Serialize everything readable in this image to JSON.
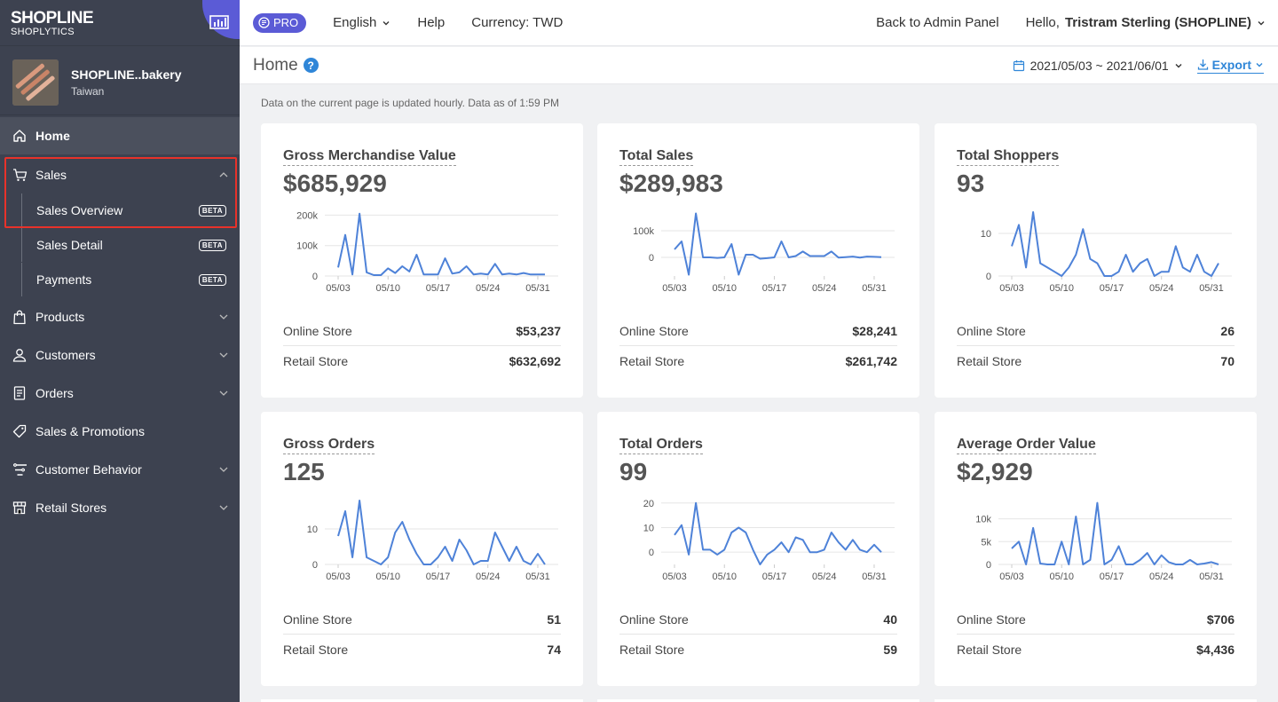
{
  "brand": {
    "logo": "SHOPLINE",
    "product": "SHOPLYTICS"
  },
  "store": {
    "name": "SHOPLINE..bakery",
    "region": "Taiwan"
  },
  "nav": {
    "home": "Home",
    "sales": "Sales",
    "sales_sub": [
      {
        "label": "Sales Overview",
        "badge": "BETA"
      },
      {
        "label": "Sales Detail",
        "badge": "BETA"
      },
      {
        "label": "Payments",
        "badge": "BETA"
      }
    ],
    "products": "Products",
    "customers": "Customers",
    "orders": "Orders",
    "promotions": "Sales & Promotions",
    "behavior": "Customer Behavior",
    "retail": "Retail Stores"
  },
  "topbar": {
    "pro": "PRO",
    "language": "English",
    "help": "Help",
    "currency": "Currency: TWD",
    "back": "Back to Admin Panel",
    "hello": "Hello,",
    "user": "Tristram Sterling (SHOPLINE)"
  },
  "header": {
    "title": "Home",
    "help_glyph": "?",
    "date_range": "2021/05/03 ~ 2021/06/01",
    "export": "Export"
  },
  "updated_note": "Data on the current page is updated hourly. Data as of 1:59 PM",
  "colors": {
    "sidebar": "#3d4250",
    "accent": "#5b5bd6",
    "link": "#2f86d8",
    "line": "#4e82d8",
    "highlight": "#e8322a"
  },
  "chart_data": [
    {
      "type": "line",
      "title": "Gross Merchandise Value",
      "total": "$685,929",
      "x_ticks": [
        "05/03",
        "05/10",
        "05/17",
        "05/24",
        "05/31"
      ],
      "y_ticks": [
        0,
        100000,
        200000
      ],
      "y_tick_labels": [
        "0",
        "100k",
        "200k"
      ],
      "ylim": [
        0,
        210000
      ],
      "values": [
        28000,
        135000,
        5000,
        205000,
        12000,
        3000,
        3000,
        25000,
        10000,
        32000,
        15000,
        70000,
        5000,
        5000,
        5000,
        58000,
        8000,
        12000,
        32000,
        5000,
        8000,
        5000,
        40000,
        5000,
        8000,
        5000,
        10000,
        5000,
        5000,
        5000
      ],
      "rows": [
        {
          "label": "Online Store",
          "value": "$53,237"
        },
        {
          "label": "Retail Store",
          "value": "$632,692"
        }
      ]
    },
    {
      "type": "line",
      "title": "Total Sales",
      "total": "$289,983",
      "x_ticks": [
        "05/03",
        "05/10",
        "05/17",
        "05/24",
        "05/31"
      ],
      "y_ticks": [
        0,
        100000
      ],
      "y_tick_labels": [
        "0",
        "100k"
      ],
      "ylim": [
        -70000,
        170000
      ],
      "values": [
        30000,
        60000,
        -65000,
        165000,
        0,
        0,
        -2000,
        0,
        50000,
        -65000,
        10000,
        10000,
        -5000,
        -3000,
        0,
        60000,
        0,
        5000,
        22000,
        5000,
        5000,
        5000,
        22000,
        -1000,
        1000,
        3000,
        -1000,
        3000,
        2000,
        1000
      ],
      "rows": [
        {
          "label": "Online Store",
          "value": "$28,241"
        },
        {
          "label": "Retail Store",
          "value": "$261,742"
        }
      ]
    },
    {
      "type": "line",
      "title": "Total Shoppers",
      "total": "93",
      "x_ticks": [
        "05/03",
        "05/10",
        "05/17",
        "05/24",
        "05/31"
      ],
      "y_ticks": [
        0,
        10
      ],
      "y_tick_labels": [
        "0",
        "10"
      ],
      "ylim": [
        0,
        15
      ],
      "values": [
        7,
        12,
        2,
        15,
        3,
        2,
        1,
        0,
        2,
        5,
        11,
        4,
        3,
        0,
        0,
        1,
        5,
        1,
        3,
        4,
        0,
        1,
        1,
        7,
        2,
        1,
        5,
        1,
        0,
        3
      ],
      "rows": [
        {
          "label": "Online Store",
          "value": "26"
        },
        {
          "label": "Retail Store",
          "value": "70"
        }
      ]
    },
    {
      "type": "line",
      "title": "Gross Orders",
      "total": "125",
      "x_ticks": [
        "05/03",
        "05/10",
        "05/17",
        "05/24",
        "05/31"
      ],
      "y_ticks": [
        0,
        10
      ],
      "y_tick_labels": [
        "0",
        "10"
      ],
      "ylim": [
        0,
        18
      ],
      "values": [
        8,
        15,
        2,
        18,
        2,
        1,
        0,
        2,
        9,
        12,
        7,
        3,
        0,
        0,
        2,
        5,
        1,
        7,
        4,
        0,
        1,
        1,
        9,
        5,
        1,
        5,
        1,
        0,
        3,
        0
      ],
      "rows": [
        {
          "label": "Online Store",
          "value": "51"
        },
        {
          "label": "Retail Store",
          "value": "74"
        }
      ]
    },
    {
      "type": "line",
      "title": "Total Orders",
      "total": "99",
      "x_ticks": [
        "05/03",
        "05/10",
        "05/17",
        "05/24",
        "05/31"
      ],
      "y_ticks": [
        0,
        10,
        20
      ],
      "y_tick_labels": [
        "0",
        "10",
        "20"
      ],
      "ylim": [
        -5,
        21
      ],
      "values": [
        7,
        11,
        -1,
        20,
        1,
        1,
        -1,
        1,
        8,
        10,
        8,
        1,
        -5,
        -1,
        1,
        4,
        0,
        6,
        5,
        0,
        0,
        1,
        8,
        4,
        1,
        5,
        1,
        0,
        3,
        0
      ],
      "rows": [
        {
          "label": "Online Store",
          "value": "40"
        },
        {
          "label": "Retail Store",
          "value": "59"
        }
      ]
    },
    {
      "type": "line",
      "title": "Average Order Value",
      "total": "$2,929",
      "x_ticks": [
        "05/03",
        "05/10",
        "05/17",
        "05/24",
        "05/31"
      ],
      "y_ticks": [
        0,
        5000,
        10000
      ],
      "y_tick_labels": [
        "0",
        "5k",
        "10k"
      ],
      "ylim": [
        0,
        14000
      ],
      "values": [
        3500,
        5000,
        0,
        8000,
        200,
        0,
        0,
        5000,
        0,
        10500,
        0,
        1000,
        13500,
        0,
        1000,
        4000,
        0,
        0,
        1000,
        2500,
        0,
        2000,
        500,
        0,
        0,
        1000,
        0,
        200,
        500,
        0
      ],
      "rows": [
        {
          "label": "Online Store",
          "value": "$706"
        },
        {
          "label": "Retail Store",
          "value": "$4,436"
        }
      ]
    }
  ]
}
